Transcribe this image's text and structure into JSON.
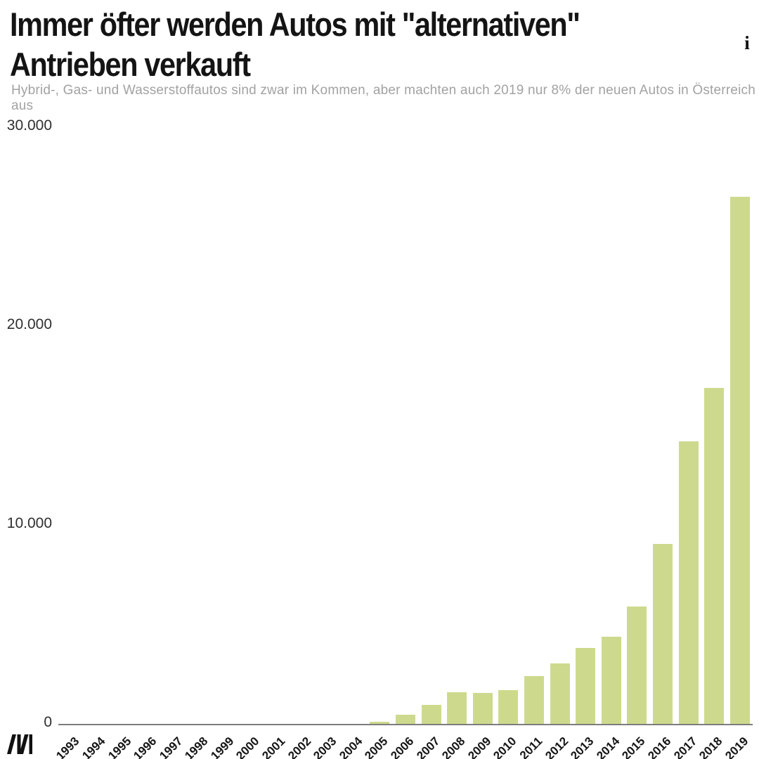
{
  "header": {
    "title": "Immer öfter werden Autos mit \"alternativen\"\nAntrieben verkauft",
    "subtitle": "Hybrid-, Gas- und Wasserstoffautos sind zwar im Kommen, aber machten auch 2019 nur 8% der neuen Autos in Österreich aus",
    "info_icon_glyph": "i"
  },
  "colors": {
    "bar": "#cdda8d",
    "axis_line": "#7d7d7d",
    "title_text": "#141414",
    "subtitle_text": "#a2a2a2",
    "tick_text": "#2f2f2f",
    "logo": "#111111"
  },
  "chart_data": {
    "type": "bar",
    "title": "Immer öfter werden Autos mit \"alternativen\" Antrieben verkauft",
    "subtitle": "Hybrid-, Gas- und Wasserstoffautos sind zwar im Kommen, aber machten auch 2019 nur 8% der neuen Autos in Österreich aus",
    "categories": [
      "1993",
      "1994",
      "1995",
      "1996",
      "1997",
      "1998",
      "1999",
      "2000",
      "2001",
      "2002",
      "2003",
      "2004",
      "2005",
      "2006",
      "2007",
      "2008",
      "2009",
      "2010",
      "2011",
      "2012",
      "2013",
      "2014",
      "2015",
      "2016",
      "2017",
      "2018",
      "2019"
    ],
    "values": [
      0,
      0,
      0,
      0,
      0,
      0,
      0,
      0,
      0,
      0,
      0,
      0,
      100,
      460,
      950,
      1590,
      1550,
      1690,
      2390,
      3040,
      3830,
      4400,
      5900,
      9050,
      14200,
      16900,
      26500
    ],
    "xlabel": "",
    "ylabel": "",
    "ylim": [
      0,
      30000
    ],
    "yticks": [
      {
        "value": 0,
        "label": "0"
      },
      {
        "value": 10000,
        "label": "10.000"
      },
      {
        "value": 20000,
        "label": "20.000"
      },
      {
        "value": 30000,
        "label": "30.000"
      }
    ],
    "grid": false,
    "legend_position": "none",
    "bar_color": "#cdda8d"
  },
  "footer": {
    "logo_name": "addendum-logo"
  }
}
